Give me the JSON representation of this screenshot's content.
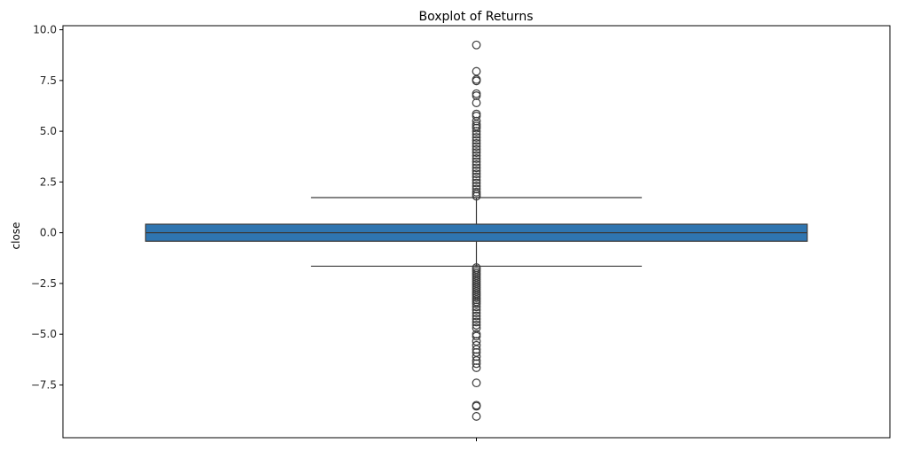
{
  "chart_data": {
    "type": "boxplot",
    "title": "Boxplot of Returns",
    "xlabel": "",
    "ylabel": "close",
    "ylim": [
      -10.1,
      10.2
    ],
    "yticks": [
      -7.5,
      -5.0,
      -2.5,
      0.0,
      2.5,
      5.0,
      7.5,
      10.0
    ],
    "ytick_labels": [
      "−7.5",
      "−5.0",
      "−2.5",
      "0.0",
      "2.5",
      "5.0",
      "7.5",
      "10.0"
    ],
    "grid": false,
    "box": {
      "q1": -0.42,
      "median": 0.0,
      "q3": 0.42,
      "whisker_low": -1.65,
      "whisker_high": 1.73
    },
    "outliers": [
      9.25,
      7.95,
      7.55,
      7.48,
      6.85,
      6.75,
      6.4,
      5.85,
      5.75,
      5.5,
      5.35,
      5.25,
      5.15,
      5.0,
      4.85,
      4.7,
      4.55,
      4.4,
      4.25,
      4.1,
      3.95,
      3.8,
      3.65,
      3.5,
      3.35,
      3.2,
      3.05,
      2.9,
      2.75,
      2.6,
      2.45,
      2.3,
      2.15,
      2.0,
      1.9,
      1.8,
      -1.72,
      -1.8,
      -1.9,
      -2.0,
      -2.1,
      -2.2,
      -2.3,
      -2.4,
      -2.5,
      -2.6,
      -2.7,
      -2.8,
      -2.9,
      -3.0,
      -3.1,
      -3.2,
      -3.3,
      -3.4,
      -3.5,
      -3.65,
      -3.8,
      -3.95,
      -4.1,
      -4.25,
      -4.4,
      -4.55,
      -4.7,
      -5.0,
      -5.1,
      -5.35,
      -5.55,
      -5.75,
      -5.9,
      -6.1,
      -6.3,
      -6.45,
      -6.65,
      -7.4,
      -8.5,
      -8.55,
      -9.05
    ],
    "colors": {
      "box_fill": "#2f75b0",
      "line": "#3a3a3a",
      "outlier_stroke": "#3a3a3a"
    }
  }
}
